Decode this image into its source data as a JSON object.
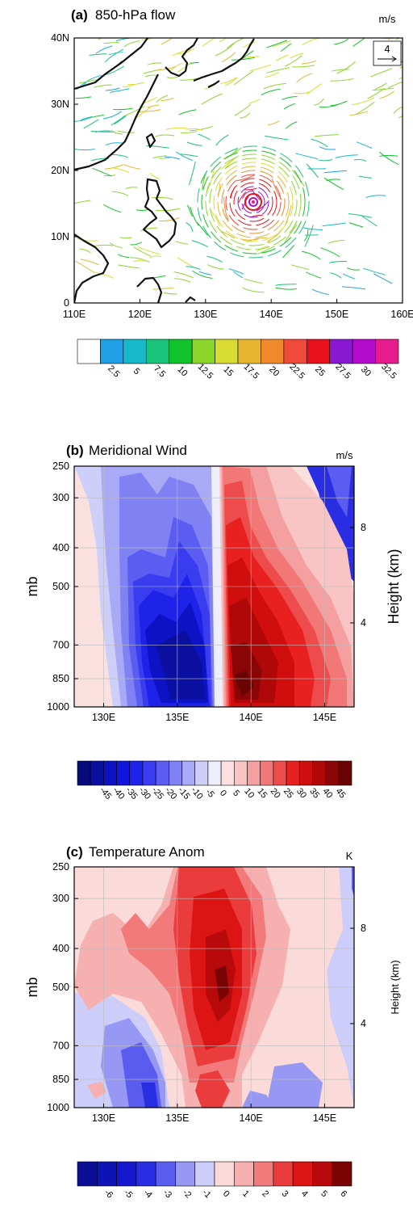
{
  "figure": {
    "panel_a": {
      "tag": "(a)",
      "title": "850-hPa flow",
      "units": "m/s",
      "ref_vector": "4"
    },
    "panel_b": {
      "tag": "(b)",
      "title": "Meridional Wind",
      "units": "m/s",
      "ylabel": "mb",
      "y2label": "Height (km)"
    },
    "panel_c": {
      "tag": "(c)",
      "title": "Temperature Anom",
      "units": "K",
      "ylabel": "mb",
      "y2label": "Height (km)"
    }
  },
  "chart_data": [
    {
      "type": "streamline-map",
      "title": "850-hPa flow",
      "units": "m/s",
      "x_ticks": [
        "110E",
        "120E",
        "130E",
        "140E",
        "150E",
        "160E"
      ],
      "y_ticks": [
        "0",
        "10N",
        "20N",
        "30N",
        "40N"
      ],
      "xlim": [
        110,
        160
      ],
      "ylim": [
        0,
        40
      ],
      "cyclone_center": {
        "lon": 137.5,
        "lat": 15.5
      },
      "colorbar": {
        "levels": [
          "2.5",
          "5",
          "7.5",
          "10",
          "12.5",
          "15",
          "17.5",
          "20",
          "22.5",
          "25",
          "27.5",
          "30",
          "32.5"
        ],
        "colors": [
          "#ffffff",
          "#1e9fe6",
          "#17b8c8",
          "#19c47a",
          "#12c22a",
          "#8cd62c",
          "#d8dc30",
          "#e6b630",
          "#ee8a2c",
          "#ef4a3c",
          "#e8101a",
          "#8a18d2",
          "#b40ccc",
          "#e61c8e"
        ]
      }
    },
    {
      "type": "contour",
      "title": "Meridional Wind",
      "units": "m/s",
      "ylabel": "mb",
      "y2label": "Height (km)",
      "x_ticks": [
        "130E",
        "135E",
        "140E",
        "145E"
      ],
      "y_ticks": [
        "250",
        "300",
        "400",
        "500",
        "700",
        "850",
        "1000"
      ],
      "y2_ticks": [
        "4",
        "8"
      ],
      "xlim": [
        128,
        147
      ],
      "ylim": [
        1000,
        250
      ],
      "colorbar": {
        "levels": [
          "-45",
          "-40",
          "-35",
          "-30",
          "-25",
          "-20",
          "-15",
          "-10",
          "-5",
          "0",
          "5",
          "10",
          "15",
          "20",
          "25",
          "30",
          "35",
          "40",
          "45"
        ],
        "colors": [
          "#070a7a",
          "#0a0fa0",
          "#0d13c4",
          "#1014dc",
          "#1f22e8",
          "#3a3cf0",
          "#5a5cf2",
          "#8082f4",
          "#a8aaf6",
          "#cdcff9",
          "#eeeefc",
          "#fbe0e0",
          "#f8c4c4",
          "#f5a0a0",
          "#f27878",
          "#ee4c4c",
          "#e82020",
          "#d00e0e",
          "#b00808",
          "#8a0606",
          "#6a0404"
        ]
      }
    },
    {
      "type": "contour",
      "title": "Temperature Anom",
      "units": "K",
      "ylabel": "mb",
      "y2label": "Height (km)",
      "x_ticks": [
        "130E",
        "135E",
        "140E",
        "145E"
      ],
      "y_ticks": [
        "250",
        "300",
        "400",
        "500",
        "700",
        "850",
        "1000"
      ],
      "y2_ticks": [
        "4",
        "8"
      ],
      "xlim": [
        128,
        147
      ],
      "ylim": [
        1000,
        250
      ],
      "colorbar": {
        "levels": [
          "-6",
          "-5",
          "-4",
          "-3",
          "-2",
          "-1",
          "0",
          "1",
          "2",
          "3",
          "4",
          "5",
          "6"
        ],
        "colors": [
          "#0a0f96",
          "#0d13b4",
          "#1518cc",
          "#2a2ee2",
          "#5a5cf0",
          "#9698f4",
          "#cccef9",
          "#fbdada",
          "#f7b0b0",
          "#f27a7a",
          "#ea3c3c",
          "#dc1414",
          "#b80a0a",
          "#7a0404"
        ]
      }
    }
  ]
}
